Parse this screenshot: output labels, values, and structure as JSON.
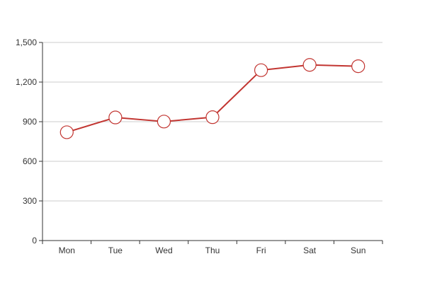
{
  "chart_data": {
    "type": "line",
    "title": "",
    "xlabel": "",
    "ylabel": "",
    "categories": [
      "Mon",
      "Tue",
      "Wed",
      "Thu",
      "Fri",
      "Sat",
      "Sun"
    ],
    "series": [
      {
        "values": [
          820,
          932,
          901,
          934,
          1290,
          1330,
          1320
        ]
      }
    ],
    "ylim": [
      0,
      1500
    ],
    "yticks": [
      0,
      300,
      600,
      900,
      1200,
      1500
    ],
    "ytick_labels": [
      "0",
      "300",
      "600",
      "900",
      "1,200",
      "1,500"
    ],
    "grid": true,
    "legend": "none",
    "colors": {
      "line": "#c23531",
      "marker_fill": "#ffffff",
      "grid": "#cccccc",
      "axis": "#333333"
    }
  }
}
